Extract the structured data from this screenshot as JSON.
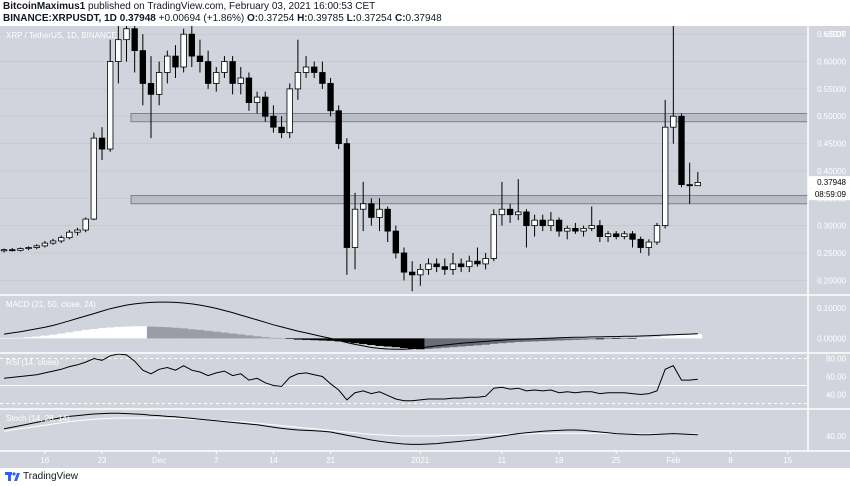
{
  "header": {
    "line1": {
      "user": "BitcoinMaximus1",
      "text": " published on TradingView.com, February 03, 2021 16:00:53 CET"
    },
    "line2": {
      "symbol": "BINANCE:XRPUSDT, 1D",
      "price": "0.37948",
      "change": "+0.00694 (+1.86%)",
      "o_label": "O:",
      "o": "0.37254",
      "h_label": "H:",
      "h": "0.39785",
      "l_label": "L:",
      "l": "0.37254",
      "c_label": "C:",
      "c": "0.37948"
    }
  },
  "footer": {
    "brand": "TradingView"
  },
  "colors": {
    "background": "#d1d4dc",
    "up_candle": "#ffffff",
    "down_candle": "#000000",
    "separator": "#ffffff",
    "price_label_bg": "#ffffff"
  },
  "chart_data": [
    {
      "type": "candlestick",
      "title": "XRP / TetherUS, 1D, BINANCE",
      "currency_label": "USDT",
      "current_price_label": "0.37948",
      "countdown_label": "08:59:09",
      "y_ticks": [
        "0.65000",
        "0.60000",
        "0.55000",
        "0.50000",
        "0.45000",
        "0.40000",
        "0.35000",
        "0.30000",
        "0.25000",
        "0.20000"
      ],
      "ylim": [
        0.175,
        0.665
      ],
      "x_ticks": [
        {
          "label": "16",
          "index": 5
        },
        {
          "label": "23",
          "index": 12
        },
        {
          "label": "Dec",
          "index": 19
        },
        {
          "label": "7",
          "index": 26
        },
        {
          "label": "14",
          "index": 33
        },
        {
          "label": "21",
          "index": 40
        },
        {
          "label": "2021",
          "index": 51
        },
        {
          "label": "11",
          "index": 61
        },
        {
          "label": "18",
          "index": 68
        },
        {
          "label": "25",
          "index": 75
        },
        {
          "label": "Feb",
          "index": 82
        },
        {
          "label": "8",
          "index": 89
        },
        {
          "label": "15",
          "index": 96
        }
      ],
      "x_range": [
        -0.5,
        98.5
      ],
      "zones": [
        {
          "low": 0.49,
          "high": 0.505
        },
        {
          "low": 0.34,
          "high": 0.355
        }
      ],
      "ohlc": [
        [
          0.254,
          0.258,
          0.251,
          0.256
        ],
        [
          0.256,
          0.259,
          0.253,
          0.255
        ],
        [
          0.255,
          0.26,
          0.253,
          0.258
        ],
        [
          0.258,
          0.262,
          0.255,
          0.26
        ],
        [
          0.26,
          0.266,
          0.257,
          0.263
        ],
        [
          0.263,
          0.272,
          0.26,
          0.268
        ],
        [
          0.268,
          0.276,
          0.265,
          0.272
        ],
        [
          0.272,
          0.282,
          0.268,
          0.278
        ],
        [
          0.278,
          0.292,
          0.275,
          0.288
        ],
        [
          0.288,
          0.296,
          0.282,
          0.292
        ],
        [
          0.292,
          0.315,
          0.288,
          0.312
        ],
        [
          0.312,
          0.47,
          0.31,
          0.46
        ],
        [
          0.46,
          0.48,
          0.42,
          0.44
        ],
        [
          0.44,
          0.64,
          0.435,
          0.6
        ],
        [
          0.6,
          0.68,
          0.56,
          0.64
        ],
        [
          0.64,
          0.7,
          0.6,
          0.66
        ],
        [
          0.66,
          0.68,
          0.58,
          0.62
        ],
        [
          0.62,
          0.65,
          0.52,
          0.56
        ],
        [
          0.56,
          0.61,
          0.46,
          0.54
        ],
        [
          0.54,
          0.6,
          0.52,
          0.58
        ],
        [
          0.58,
          0.62,
          0.56,
          0.61
        ],
        [
          0.61,
          0.63,
          0.57,
          0.59
        ],
        [
          0.59,
          0.66,
          0.58,
          0.65
        ],
        [
          0.65,
          0.67,
          0.59,
          0.61
        ],
        [
          0.61,
          0.64,
          0.58,
          0.6
        ],
        [
          0.6,
          0.62,
          0.55,
          0.56
        ],
        [
          0.56,
          0.59,
          0.545,
          0.58
        ],
        [
          0.58,
          0.61,
          0.57,
          0.6
        ],
        [
          0.6,
          0.61,
          0.54,
          0.56
        ],
        [
          0.56,
          0.59,
          0.54,
          0.57
        ],
        [
          0.57,
          0.58,
          0.51,
          0.525
        ],
        [
          0.525,
          0.545,
          0.505,
          0.535
        ],
        [
          0.535,
          0.545,
          0.49,
          0.5
        ],
        [
          0.5,
          0.52,
          0.47,
          0.48
        ],
        [
          0.48,
          0.5,
          0.46,
          0.47
        ],
        [
          0.47,
          0.56,
          0.46,
          0.55
        ],
        [
          0.55,
          0.64,
          0.53,
          0.58
        ],
        [
          0.58,
          0.61,
          0.57,
          0.59
        ],
        [
          0.59,
          0.6,
          0.57,
          0.58
        ],
        [
          0.58,
          0.6,
          0.55,
          0.56
        ],
        [
          0.56,
          0.57,
          0.5,
          0.51
        ],
        [
          0.51,
          0.52,
          0.44,
          0.45
        ],
        [
          0.45,
          0.46,
          0.21,
          0.26
        ],
        [
          0.26,
          0.36,
          0.22,
          0.33
        ],
        [
          0.33,
          0.38,
          0.29,
          0.34
        ],
        [
          0.34,
          0.35,
          0.3,
          0.315
        ],
        [
          0.315,
          0.35,
          0.29,
          0.33
        ],
        [
          0.33,
          0.335,
          0.27,
          0.29
        ],
        [
          0.29,
          0.3,
          0.24,
          0.25
        ],
        [
          0.25,
          0.26,
          0.2,
          0.215
        ],
        [
          0.215,
          0.235,
          0.18,
          0.21
        ],
        [
          0.21,
          0.23,
          0.19,
          0.22
        ],
        [
          0.22,
          0.24,
          0.21,
          0.23
        ],
        [
          0.23,
          0.24,
          0.215,
          0.225
        ],
        [
          0.225,
          0.24,
          0.21,
          0.22
        ],
        [
          0.22,
          0.25,
          0.21,
          0.23
        ],
        [
          0.23,
          0.24,
          0.215,
          0.225
        ],
        [
          0.225,
          0.245,
          0.215,
          0.235
        ],
        [
          0.235,
          0.26,
          0.225,
          0.23
        ],
        [
          0.23,
          0.25,
          0.22,
          0.24
        ],
        [
          0.24,
          0.33,
          0.235,
          0.32
        ],
        [
          0.32,
          0.38,
          0.3,
          0.33
        ],
        [
          0.33,
          0.34,
          0.305,
          0.32
        ],
        [
          0.32,
          0.385,
          0.31,
          0.325
        ],
        [
          0.325,
          0.33,
          0.26,
          0.3
        ],
        [
          0.3,
          0.32,
          0.28,
          0.31
        ],
        [
          0.31,
          0.32,
          0.29,
          0.3
        ],
        [
          0.3,
          0.325,
          0.29,
          0.31
        ],
        [
          0.31,
          0.315,
          0.28,
          0.29
        ],
        [
          0.29,
          0.3,
          0.275,
          0.295
        ],
        [
          0.295,
          0.305,
          0.285,
          0.29
        ],
        [
          0.29,
          0.3,
          0.28,
          0.295
        ],
        [
          0.295,
          0.335,
          0.29,
          0.3
        ],
        [
          0.3,
          0.31,
          0.27,
          0.28
        ],
        [
          0.28,
          0.29,
          0.27,
          0.285
        ],
        [
          0.285,
          0.29,
          0.275,
          0.28
        ],
        [
          0.28,
          0.29,
          0.275,
          0.285
        ],
        [
          0.285,
          0.29,
          0.26,
          0.275
        ],
        [
          0.275,
          0.28,
          0.25,
          0.26
        ],
        [
          0.26,
          0.275,
          0.245,
          0.27
        ],
        [
          0.27,
          0.305,
          0.265,
          0.3
        ],
        [
          0.3,
          0.53,
          0.295,
          0.48
        ],
        [
          0.48,
          0.75,
          0.45,
          0.5
        ],
        [
          0.5,
          0.505,
          0.37,
          0.375
        ],
        [
          0.375,
          0.415,
          0.34,
          0.373
        ],
        [
          0.373,
          0.398,
          0.373,
          0.379
        ]
      ]
    },
    {
      "type": "histogram",
      "title": "MACD (21, 50, close, 24)",
      "y_ticks": [
        "0.10000",
        "0.00000"
      ],
      "ylim": [
        -0.045,
        0.14
      ],
      "histogram": [
        0.0,
        0.001,
        0.002,
        0.004,
        0.006,
        0.009,
        0.012,
        0.016,
        0.02,
        0.024,
        0.028,
        0.031,
        0.034,
        0.036,
        0.038,
        0.039,
        0.04,
        0.04,
        0.039,
        0.038,
        0.037,
        0.035,
        0.033,
        0.03,
        0.028,
        0.025,
        0.022,
        0.019,
        0.016,
        0.013,
        0.01,
        0.007,
        0.004,
        0.002,
        0.0,
        -0.002,
        -0.004,
        -0.005,
        -0.006,
        -0.007,
        -0.008,
        -0.01,
        -0.013,
        -0.016,
        -0.019,
        -0.022,
        -0.025,
        -0.027,
        -0.029,
        -0.032,
        -0.035,
        -0.036,
        -0.035,
        -0.033,
        -0.031,
        -0.029,
        -0.027,
        -0.025,
        -0.023,
        -0.021,
        -0.018,
        -0.016,
        -0.014,
        -0.012,
        -0.011,
        -0.01,
        -0.009,
        -0.008,
        -0.007,
        -0.006,
        -0.005,
        -0.004,
        -0.003,
        -0.003,
        -0.002,
        -0.002,
        -0.001,
        -0.001,
        0.0,
        0.002,
        0.004,
        0.008,
        0.01,
        0.012,
        0.013,
        0.014
      ],
      "macd_line": [
        0.014,
        0.018,
        0.022,
        0.027,
        0.032,
        0.037,
        0.043,
        0.05,
        0.058,
        0.066,
        0.074,
        0.082,
        0.09,
        0.098,
        0.104,
        0.11,
        0.114,
        0.117,
        0.119,
        0.12,
        0.12,
        0.119,
        0.117,
        0.114,
        0.11,
        0.105,
        0.099,
        0.092,
        0.085,
        0.077,
        0.069,
        0.061,
        0.053,
        0.045,
        0.038,
        0.031,
        0.024,
        0.018,
        0.012,
        0.006,
        0.0,
        -0.007,
        -0.014,
        -0.02,
        -0.025,
        -0.03,
        -0.033,
        -0.035,
        -0.036,
        -0.036,
        -0.034,
        -0.031,
        -0.028,
        -0.025,
        -0.022,
        -0.019,
        -0.016,
        -0.014,
        -0.012,
        -0.01,
        -0.008,
        -0.006,
        -0.004,
        -0.003,
        -0.002,
        -0.001,
        0.0,
        0.001,
        0.002,
        0.003,
        0.004,
        0.004,
        0.005,
        0.005,
        0.006,
        0.006,
        0.007,
        0.007,
        0.008,
        0.009,
        0.01,
        0.011,
        0.012,
        0.013,
        0.014,
        0.015
      ]
    },
    {
      "type": "line",
      "title": "RSI (14, close)",
      "y_ticks": [
        "80.00",
        "60.00",
        "40.00"
      ],
      "ylim": [
        25,
        85
      ],
      "bands": [
        80,
        50,
        30
      ],
      "values": [
        58,
        59,
        60,
        61,
        62,
        64,
        66,
        68,
        71,
        73,
        76,
        80,
        78,
        83,
        85,
        84,
        77,
        67,
        63,
        68,
        70,
        67,
        72,
        67,
        65,
        61,
        64,
        66,
        61,
        63,
        56,
        58,
        53,
        50,
        49,
        59,
        63,
        64,
        62,
        60,
        52,
        45,
        34,
        42,
        44,
        41,
        43,
        39,
        35,
        33,
        33,
        34,
        35,
        35,
        35,
        36,
        36,
        37,
        37,
        38,
        47,
        48,
        46,
        47,
        44,
        45,
        44,
        45,
        42,
        43,
        42,
        43,
        43,
        41,
        42,
        42,
        42,
        41,
        40,
        41,
        44,
        68,
        72,
        56,
        56,
        57
      ]
    },
    {
      "type": "line",
      "title": "Stoch (14, 28, 14)",
      "y_ticks": [
        "40.00"
      ],
      "ylim": [
        5,
        105
      ],
      "values_k": [
        58,
        62,
        66,
        70,
        74,
        78,
        82,
        86,
        89,
        91,
        93,
        95,
        96,
        97,
        97,
        96,
        95,
        94,
        92,
        91,
        89,
        88,
        86,
        84,
        82,
        80,
        78,
        76,
        74,
        72,
        70,
        68,
        65,
        62,
        59,
        57,
        55,
        54,
        53,
        52,
        50,
        46,
        42,
        38,
        34,
        30,
        27,
        24,
        22,
        20,
        19,
        19,
        20,
        21,
        23,
        25,
        27,
        29,
        31,
        34,
        37,
        40,
        43,
        46,
        48,
        50,
        52,
        53,
        54,
        55,
        55,
        54,
        52,
        50,
        48,
        46,
        45,
        44,
        43,
        43,
        44,
        45,
        46,
        45,
        44,
        43
      ],
      "values_d": [
        52,
        55,
        58,
        61,
        64,
        67,
        70,
        73,
        76,
        78,
        80,
        82,
        83,
        84,
        85,
        85,
        85,
        85,
        85,
        85,
        84,
        84,
        83,
        82,
        81,
        80,
        79,
        78,
        77,
        76,
        74,
        72,
        70,
        68,
        66,
        64,
        62,
        60,
        58,
        56,
        54,
        52,
        50,
        48,
        46,
        44,
        43,
        42,
        41,
        40,
        40,
        40,
        40,
        40,
        41,
        41,
        42,
        42,
        43,
        43,
        44,
        44,
        45,
        45,
        45,
        46,
        46,
        46,
        47,
        47,
        47,
        47,
        47,
        47,
        46,
        46,
        46,
        45,
        45,
        45,
        45,
        45,
        45,
        45,
        45,
        45
      ]
    }
  ]
}
